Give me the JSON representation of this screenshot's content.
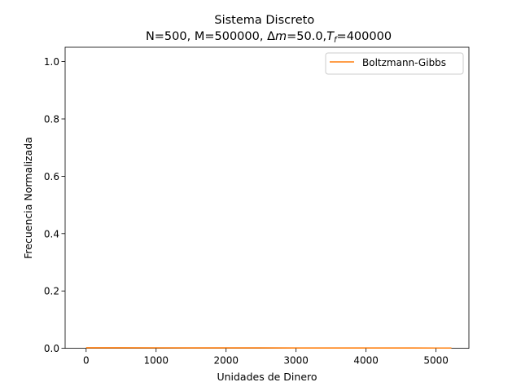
{
  "chart_data": {
    "type": "line",
    "title_line1": "Sistema Discreto",
    "title_line2_prefix": "N=500, M=500000, ",
    "title_delta": "Δ",
    "title_m": "m",
    "title_mid": "=50.0,",
    "title_T": "T",
    "title_f": "f",
    "title_end": "=400000",
    "xlabel": "Unidades de Dinero",
    "ylabel": "Frecuencia Normalizada",
    "xlim": [
      -300,
      5470
    ],
    "ylim": [
      0,
      1.05
    ],
    "x_ticks": [
      0,
      1000,
      2000,
      3000,
      4000,
      5000
    ],
    "x_tick_labels": [
      "0",
      "1000",
      "2000",
      "3000",
      "4000",
      "5000"
    ],
    "y_ticks": [
      0.0,
      0.2,
      0.4,
      0.6,
      0.8,
      1.0
    ],
    "y_tick_labels": [
      "0.0",
      "0.2",
      "0.4",
      "0.6",
      "0.8",
      "1.0"
    ],
    "grid": false,
    "legend_position": "top-right",
    "series": [
      {
        "name": "Boltzmann-Gibbs",
        "color": "#ff7f0e",
        "x": [
          0,
          500,
          1000,
          1500,
          2000,
          2500,
          3000,
          3500,
          4000,
          4500,
          5000,
          5220
        ],
        "y": [
          0.0019,
          0.0018,
          0.0017,
          0.0016,
          0.0015,
          0.0014,
          0.0013,
          0.0012,
          0.0011,
          0.0011,
          0.001,
          0.001
        ]
      }
    ]
  }
}
